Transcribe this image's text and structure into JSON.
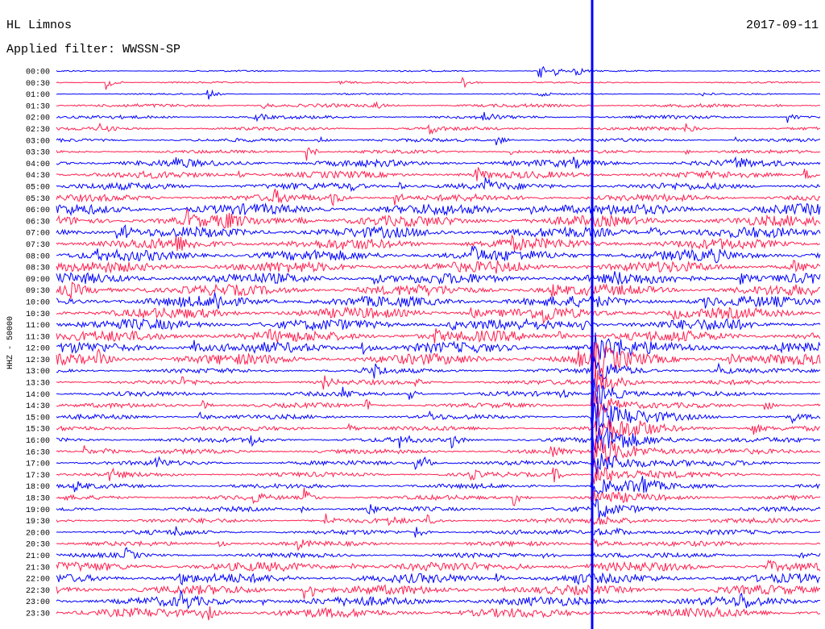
{
  "header": {
    "station": "HL Limnos",
    "date": "2017-09-11",
    "filter": "Applied filter: WWSSN-SP"
  },
  "axis_label": "HHZ - 50000",
  "rows": [
    "00:00",
    "00:30",
    "01:00",
    "01:30",
    "02:00",
    "02:30",
    "03:00",
    "03:30",
    "04:00",
    "04:30",
    "05:00",
    "05:30",
    "06:00",
    "06:30",
    "07:00",
    "07:30",
    "08:00",
    "08:30",
    "09:00",
    "09:30",
    "10:00",
    "10:30",
    "11:00",
    "11:30",
    "12:00",
    "12:30",
    "13:00",
    "13:30",
    "14:00",
    "14:30",
    "15:00",
    "15:30",
    "16:00",
    "16:30",
    "17:00",
    "17:30",
    "18:00",
    "18:30",
    "19:00",
    "19:30",
    "20:00",
    "20:30",
    "21:00",
    "21:30",
    "22:00",
    "22:30",
    "23:00",
    "23:30"
  ]
}
